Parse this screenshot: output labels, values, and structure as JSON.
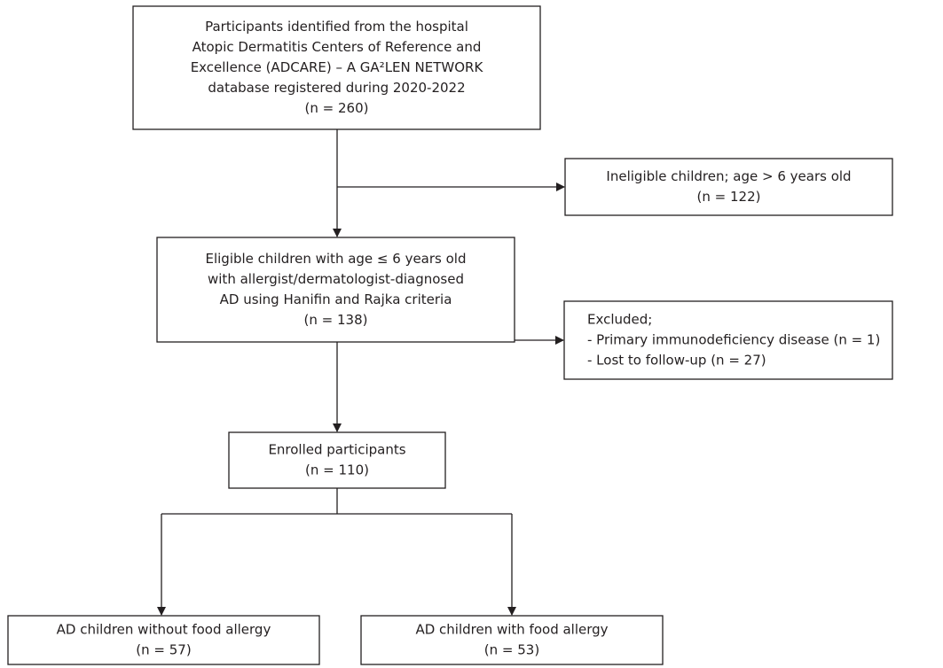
{
  "nodes": [
    {
      "lines": [
        "Participants identified from the hospital",
        "Atopic Dermatitis Centers of Reference and",
        "Excellence (ADCARE) – A GA²LEN NETWORK",
        "database registered during 2020-2022",
        "(n = 260)"
      ]
    },
    {
      "lines": [
        "Ineligible children; age > 6 years old",
        "(n = 122)"
      ]
    },
    {
      "lines": [
        "Eligible children with age ≤ 6 years old",
        "with allergist/dermatologist-diagnosed",
        "AD using Hanifin and Rajka criteria",
        "(n = 138)"
      ]
    },
    {
      "lines": [
        "Excluded;",
        "- Primary immunodeficiency disease (n = 1)",
        "- Lost to follow-up (n = 27)"
      ]
    },
    {
      "lines": [
        "Enrolled participants",
        "(n = 110)"
      ]
    },
    {
      "lines": [
        "AD children without food allergy",
        "(n = 57)"
      ]
    },
    {
      "lines": [
        "AD children with food allergy",
        "(n = 53)"
      ]
    }
  ]
}
